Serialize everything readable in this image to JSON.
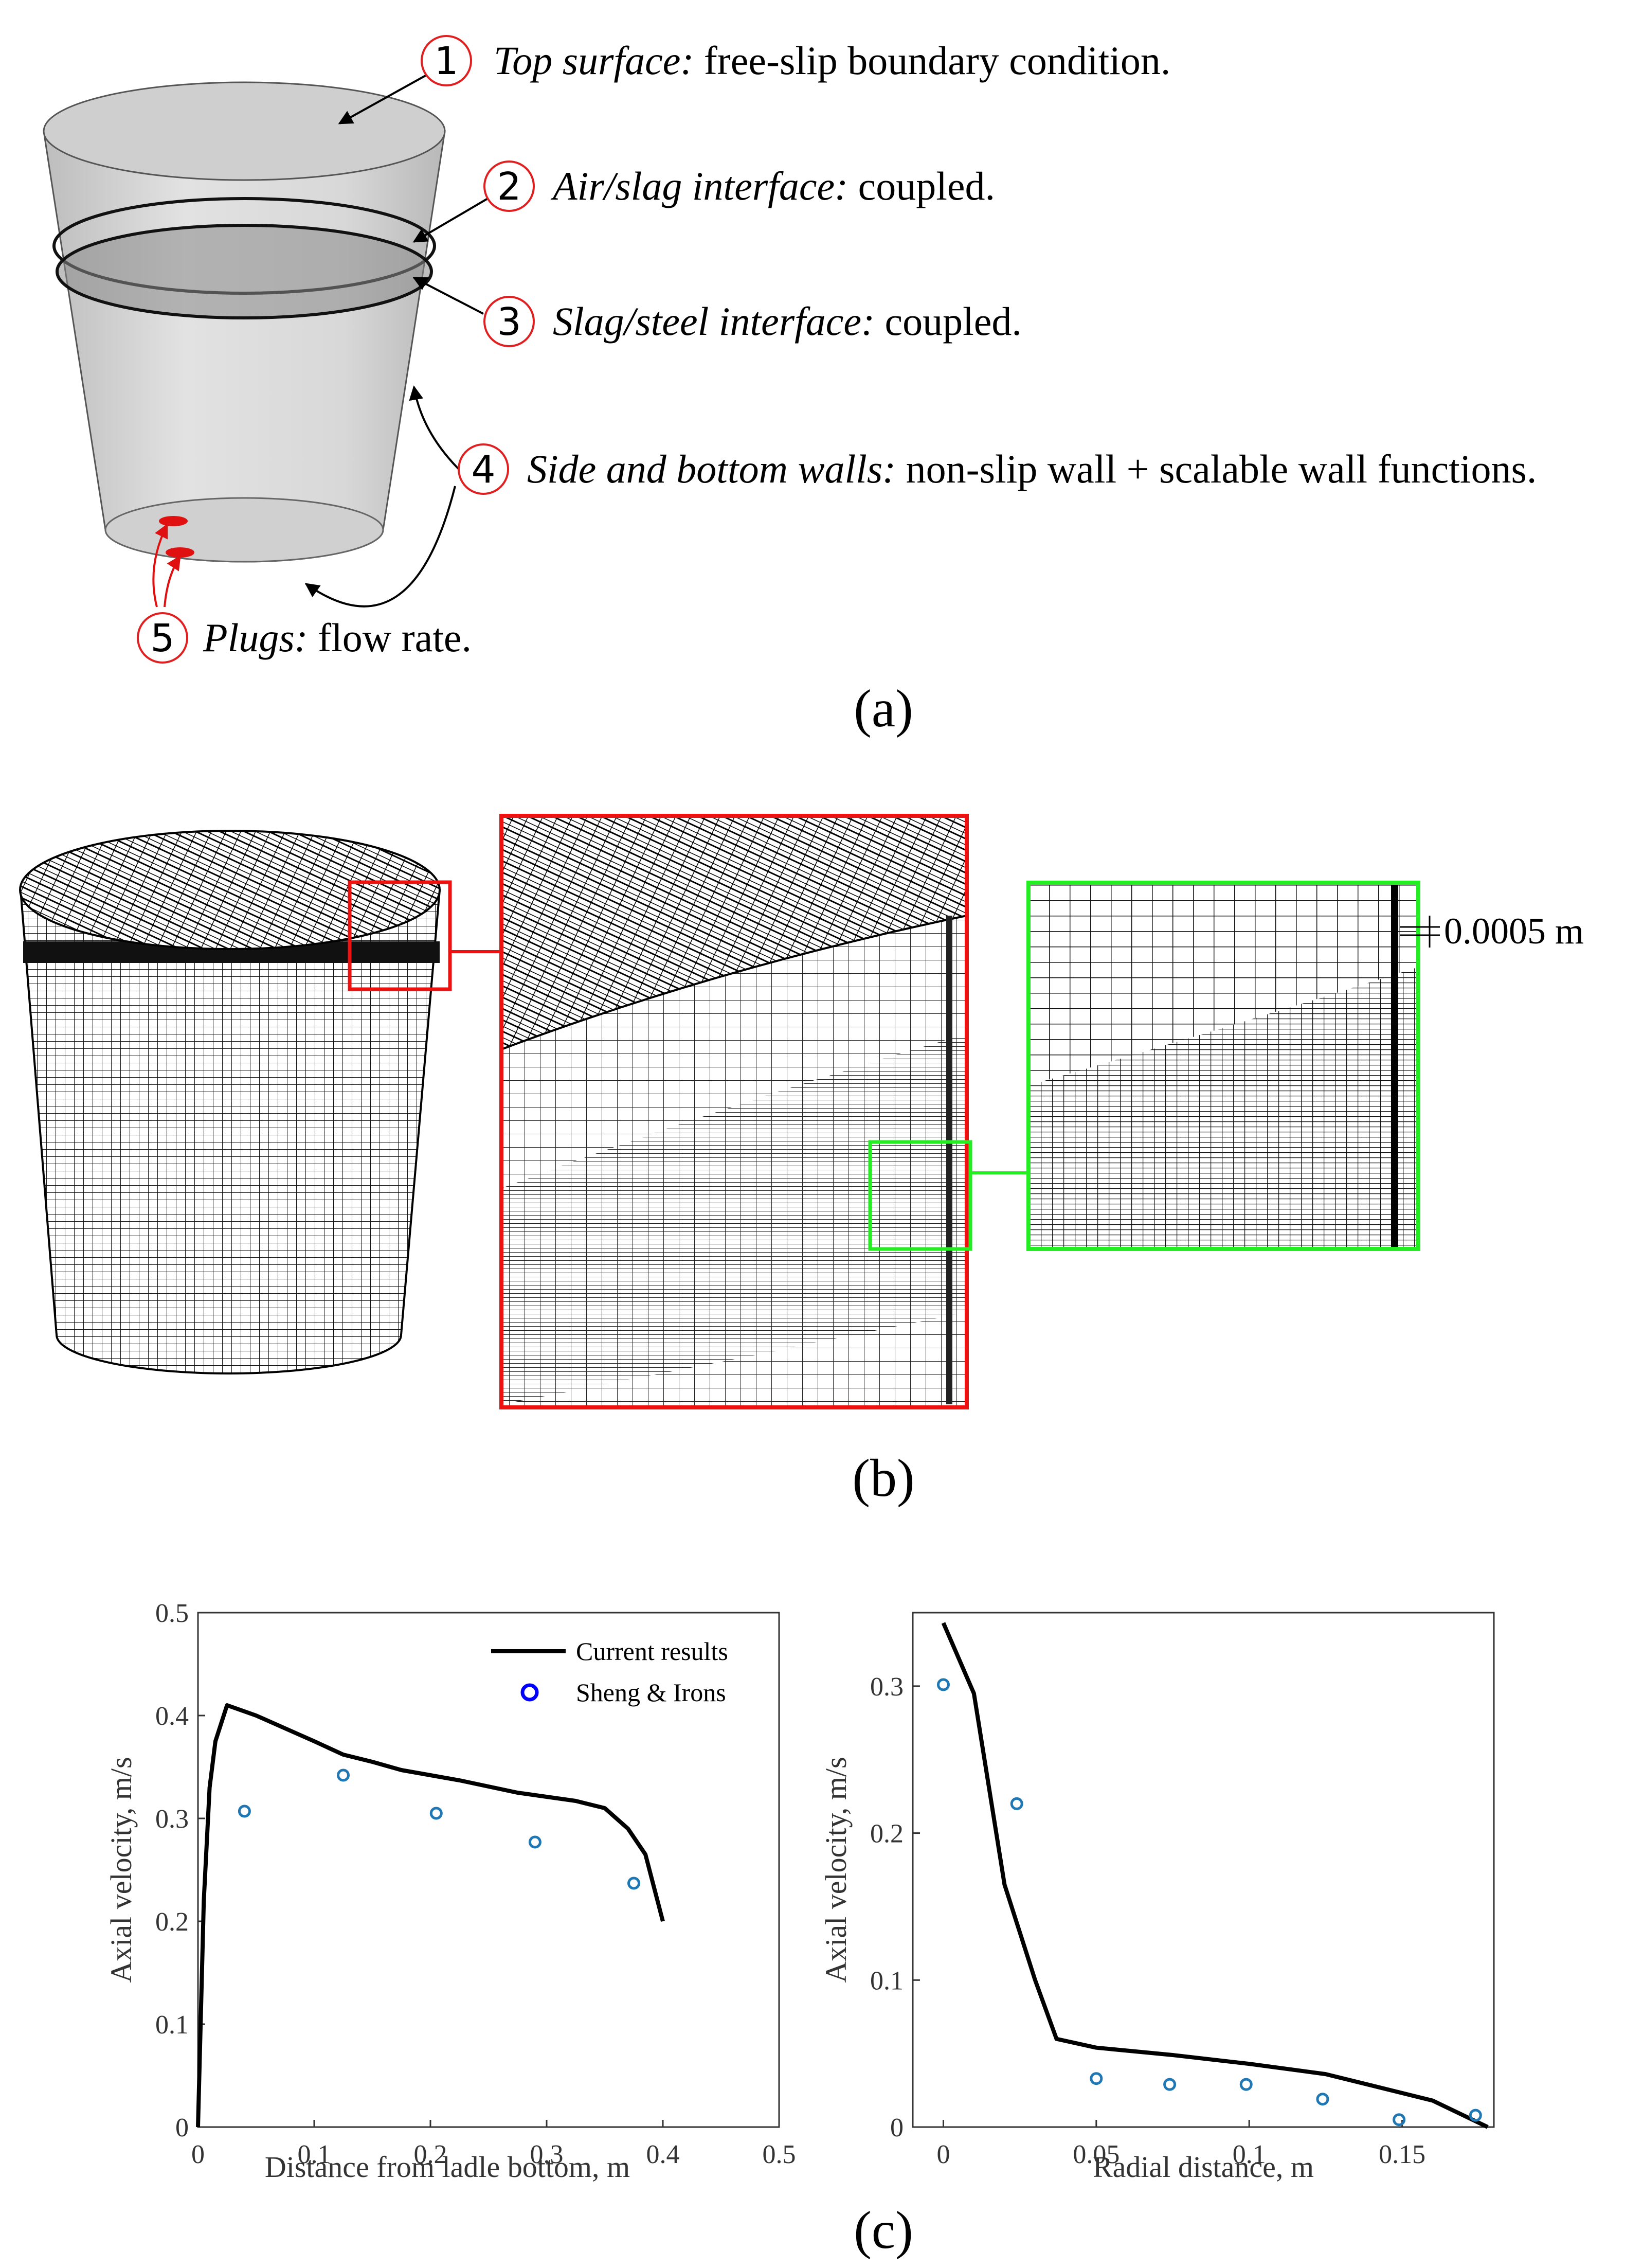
{
  "figure": {
    "panel_a": {
      "caption": "(a)",
      "callouts": [
        {
          "num": "1",
          "label": "Top surface:",
          "desc": " free-slip boundary condition."
        },
        {
          "num": "2",
          "label": "Air/slag interface:",
          "desc": " coupled."
        },
        {
          "num": "3",
          "label": "Slag/steel interface:",
          "desc": " coupled."
        },
        {
          "num": "4",
          "label": "Side and bottom walls:",
          "desc": " non-slip wall + scalable wall functions."
        },
        {
          "num": "5",
          "label": "Plugs:",
          "desc": " flow rate."
        }
      ],
      "colors": {
        "callout": "#e02020",
        "plug": "#e01010",
        "vessel": "#d6d6d6"
      }
    },
    "panel_b": {
      "caption": "(b)",
      "dimension_label": "0.0005 m",
      "colors": {
        "zoom1": "#ee1111",
        "zoom2": "#22ee22"
      }
    },
    "panel_c": {
      "caption": "(c)"
    }
  },
  "chart_data": [
    {
      "type": "line",
      "xlabel": "Distance from ladle bottom, m",
      "ylabel": "Axial velocity, m/s",
      "xlim": [
        0,
        0.5
      ],
      "ylim": [
        0,
        0.5
      ],
      "xticks": [
        "0",
        "0.1",
        "0.2",
        "0.3",
        "0.4",
        "0.5"
      ],
      "yticks": [
        "0",
        "0.1",
        "0.2",
        "0.3",
        "0.4",
        "0.5"
      ],
      "legend_position": "top-right",
      "grid": false,
      "series": [
        {
          "name": "Current results",
          "style": "line",
          "color": "#000000",
          "x": [
            0.0,
            0.005,
            0.01,
            0.015,
            0.025,
            0.05,
            0.08,
            0.1,
            0.125,
            0.15,
            0.175,
            0.2,
            0.225,
            0.25,
            0.275,
            0.3,
            0.325,
            0.35,
            0.37,
            0.385,
            0.4
          ],
          "y": [
            0.0,
            0.22,
            0.33,
            0.375,
            0.41,
            0.4,
            0.385,
            0.375,
            0.362,
            0.355,
            0.347,
            0.342,
            0.337,
            0.331,
            0.325,
            0.321,
            0.317,
            0.31,
            0.29,
            0.265,
            0.2
          ]
        },
        {
          "name": "Sheng & Irons",
          "style": "marker",
          "color": "#1f77b4",
          "x": [
            0.04,
            0.125,
            0.205,
            0.29,
            0.375
          ],
          "y": [
            0.307,
            0.342,
            0.305,
            0.277,
            0.237
          ]
        }
      ]
    },
    {
      "type": "line",
      "xlabel": "Radial distance, m",
      "ylabel": "Axial velocity, m/s",
      "xlim": [
        -0.01,
        0.18
      ],
      "ylim": [
        0,
        0.35
      ],
      "xticks": [
        "0",
        "0.05",
        "0.1",
        "0.15"
      ],
      "yticks": [
        "0",
        "0.1",
        "0.2",
        "0.3"
      ],
      "grid": false,
      "series": [
        {
          "name": "Current results",
          "style": "line",
          "color": "#000000",
          "x": [
            0.0,
            0.01,
            0.02,
            0.03,
            0.037,
            0.05,
            0.075,
            0.1,
            0.125,
            0.16,
            0.178
          ],
          "y": [
            0.343,
            0.295,
            0.165,
            0.1,
            0.06,
            0.054,
            0.049,
            0.043,
            0.036,
            0.018,
            0.0
          ]
        },
        {
          "name": "Sheng & Irons",
          "style": "marker",
          "color": "#1f77b4",
          "x": [
            0.0,
            0.024,
            0.05,
            0.074,
            0.099,
            0.124,
            0.149,
            0.174
          ],
          "y": [
            0.301,
            0.22,
            0.033,
            0.029,
            0.029,
            0.019,
            0.005,
            0.008
          ]
        }
      ]
    }
  ]
}
